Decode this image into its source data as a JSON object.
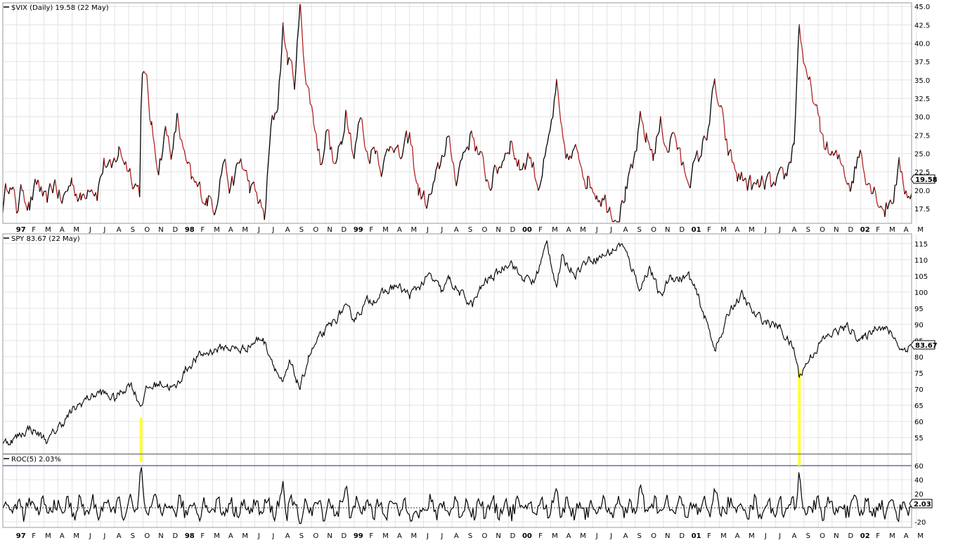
{
  "panels": {
    "vix": {
      "label": "$VIX (Daily) 19.58 (22 May)",
      "last_value": "19.58"
    },
    "spy": {
      "label": "SPY 83.67 (22 May)",
      "last_value": "83.67"
    },
    "roc": {
      "label": "ROC(5) 2.03%",
      "last_value": "2.03"
    }
  },
  "colors": {
    "vix_up": "#000000",
    "vix_down": "#b22222",
    "grid": "#e3e3e3",
    "highlight": "#ffff33",
    "roc_level_line": "#1a237e",
    "panel_border": "#9a9a9a"
  },
  "chart_data": [
    {
      "type": "line",
      "name": "vix",
      "x_range": [
        "1997-01-02",
        "2002-05-22"
      ],
      "ylim": [
        15.5,
        45.5
      ],
      "yticks": [
        17.5,
        20.0,
        22.5,
        25.0,
        27.5,
        30.0,
        32.5,
        35.0,
        37.5,
        40.0,
        42.5,
        45.0
      ],
      "ytick_labels": [
        "17.5",
        "20.0",
        "22.5",
        "25.0",
        "27.5",
        "30.0",
        "32.5",
        "35.0",
        "37.5",
        "40.0",
        "42.5",
        "45.0"
      ],
      "grid": true,
      "points": [
        [
          "1997-01-02",
          18
        ],
        [
          "1997-01-15",
          21.5
        ],
        [
          "1997-02-01",
          17.5
        ],
        [
          "1997-02-15",
          20.5
        ],
        [
          "1997-03-01",
          18
        ],
        [
          "1997-03-20",
          21
        ],
        [
          "1997-04-05",
          17.8
        ],
        [
          "1997-04-25",
          21.2
        ],
        [
          "1997-05-10",
          18.2
        ],
        [
          "1997-06-01",
          21.5
        ],
        [
          "1997-06-20",
          18.5
        ],
        [
          "1997-07-10",
          21.5
        ],
        [
          "1997-07-25",
          20
        ],
        [
          "1997-08-10",
          24
        ],
        [
          "1997-08-25",
          22
        ],
        [
          "1997-09-10",
          25.5
        ],
        [
          "1997-09-25",
          24
        ],
        [
          "1997-10-10",
          22
        ],
        [
          "1997-10-25",
          20
        ],
        [
          "1997-10-28",
          31
        ],
        [
          "1997-10-31",
          37
        ],
        [
          "1997-11-10",
          34
        ],
        [
          "1997-11-20",
          28
        ],
        [
          "1997-12-05",
          23.5
        ],
        [
          "1997-12-20",
          28
        ],
        [
          "1998-01-05",
          25
        ],
        [
          "1998-01-15",
          30
        ],
        [
          "1998-01-30",
          24
        ],
        [
          "1998-02-15",
          21
        ],
        [
          "1998-03-01",
          20
        ],
        [
          "1998-03-20",
          19
        ],
        [
          "1998-04-05",
          18
        ],
        [
          "1998-04-25",
          24.5
        ],
        [
          "1998-05-10",
          20
        ],
        [
          "1998-06-01",
          24
        ],
        [
          "1998-06-20",
          20.5
        ],
        [
          "1998-07-10",
          18.5
        ],
        [
          "1998-07-22",
          16
        ],
        [
          "1998-08-05",
          28
        ],
        [
          "1998-08-20",
          32
        ],
        [
          "1998-08-31",
          42
        ],
        [
          "1998-09-10",
          38
        ],
        [
          "1998-09-25",
          35
        ],
        [
          "1998-10-08",
          45
        ],
        [
          "1998-10-20",
          35
        ],
        [
          "1998-11-05",
          30
        ],
        [
          "1998-11-20",
          24
        ],
        [
          "1998-12-05",
          28.5
        ],
        [
          "1998-12-20",
          23
        ],
        [
          "1999-01-05",
          26
        ],
        [
          "1999-01-15",
          32
        ],
        [
          "1999-02-01",
          25
        ],
        [
          "1999-02-15",
          30
        ],
        [
          "1999-03-01",
          25
        ],
        [
          "1999-03-20",
          26
        ],
        [
          "1999-04-05",
          23
        ],
        [
          "1999-04-25",
          27.5
        ],
        [
          "1999-05-10",
          24
        ],
        [
          "1999-06-01",
          27
        ],
        [
          "1999-06-20",
          20
        ],
        [
          "1999-07-10",
          18
        ],
        [
          "1999-08-01",
          22
        ],
        [
          "1999-08-20",
          27
        ],
        [
          "1999-09-10",
          22
        ],
        [
          "1999-09-25",
          25
        ],
        [
          "1999-10-15",
          28
        ],
        [
          "1999-11-01",
          24
        ],
        [
          "1999-11-20",
          21
        ],
        [
          "1999-12-10",
          23
        ],
        [
          "2000-01-05",
          27
        ],
        [
          "2000-01-25",
          23
        ],
        [
          "2000-02-15",
          25
        ],
        [
          "2000-03-05",
          21
        ],
        [
          "2000-03-25",
          25
        ],
        [
          "2000-04-14",
          33.5
        ],
        [
          "2000-04-25",
          27
        ],
        [
          "2000-05-10",
          24
        ],
        [
          "2000-06-01",
          25
        ],
        [
          "2000-06-20",
          21.5
        ],
        [
          "2000-07-10",
          20
        ],
        [
          "2000-08-01",
          18.5
        ],
        [
          "2000-08-25",
          16.5
        ],
        [
          "2000-09-10",
          20
        ],
        [
          "2000-09-25",
          22
        ],
        [
          "2000-10-12",
          29
        ],
        [
          "2000-10-25",
          27
        ],
        [
          "2000-11-10",
          25
        ],
        [
          "2000-11-25",
          29
        ],
        [
          "2000-12-10",
          26
        ],
        [
          "2000-12-25",
          28
        ],
        [
          "2001-01-10",
          23
        ],
        [
          "2001-01-25",
          22
        ],
        [
          "2001-02-15",
          24
        ],
        [
          "2001-03-05",
          28
        ],
        [
          "2001-03-22",
          34
        ],
        [
          "2001-04-05",
          30
        ],
        [
          "2001-04-20",
          25
        ],
        [
          "2001-05-10",
          22
        ],
        [
          "2001-06-01",
          21
        ],
        [
          "2001-06-20",
          20
        ],
        [
          "2001-07-10",
          21
        ],
        [
          "2001-08-01",
          20
        ],
        [
          "2001-08-25",
          22
        ],
        [
          "2001-09-10",
          27
        ],
        [
          "2001-09-21",
          43
        ],
        [
          "2001-10-05",
          35
        ],
        [
          "2001-10-20",
          33
        ],
        [
          "2001-11-05",
          28
        ],
        [
          "2001-11-25",
          25
        ],
        [
          "2001-12-10",
          24
        ],
        [
          "2001-12-25",
          23
        ],
        [
          "2002-01-10",
          21
        ],
        [
          "2002-01-31",
          25.5
        ],
        [
          "2002-02-15",
          22
        ],
        [
          "2002-03-05",
          20
        ],
        [
          "2002-03-25",
          17.5
        ],
        [
          "2002-04-10",
          19
        ],
        [
          "2002-04-25",
          23
        ],
        [
          "2002-05-10",
          20
        ],
        [
          "2002-05-22",
          19.58
        ]
      ]
    },
    {
      "type": "line",
      "name": "spy",
      "x_range": [
        "1997-01-02",
        "2002-05-22"
      ],
      "ylim": [
        50,
        118
      ],
      "yticks": [
        55,
        60,
        65,
        70,
        75,
        80,
        85,
        90,
        95,
        100,
        105,
        110,
        115
      ],
      "ytick_labels": [
        "55",
        "60",
        "65",
        "70",
        "75",
        "80",
        "85",
        "90",
        "95",
        "100",
        "105",
        "110",
        "115"
      ],
      "grid": true,
      "points": [
        [
          "1997-01-02",
          53
        ],
        [
          "1997-02-01",
          55
        ],
        [
          "1997-03-01",
          58
        ],
        [
          "1997-04-10",
          54
        ],
        [
          "1997-05-01",
          58
        ],
        [
          "1997-06-01",
          63
        ],
        [
          "1997-07-01",
          67
        ],
        [
          "1997-08-01",
          69
        ],
        [
          "1997-09-01",
          67
        ],
        [
          "1997-10-05",
          72
        ],
        [
          "1997-10-27",
          65
        ],
        [
          "1997-11-10",
          70
        ],
        [
          "1997-12-10",
          72
        ],
        [
          "1998-01-10",
          70
        ],
        [
          "1998-02-01",
          76
        ],
        [
          "1998-03-01",
          80
        ],
        [
          "1998-04-01",
          82
        ],
        [
          "1998-05-01",
          83
        ],
        [
          "1998-06-01",
          82
        ],
        [
          "1998-07-17",
          86
        ],
        [
          "1998-08-05",
          80
        ],
        [
          "1998-08-31",
          71
        ],
        [
          "1998-09-15",
          78
        ],
        [
          "1998-10-08",
          70
        ],
        [
          "1998-10-25",
          80
        ],
        [
          "1998-11-20",
          86
        ],
        [
          "1998-12-15",
          90
        ],
        [
          "1999-01-10",
          95
        ],
        [
          "1999-02-01",
          92
        ],
        [
          "1999-03-01",
          97
        ],
        [
          "1999-04-01",
          99
        ],
        [
          "1999-05-01",
          102
        ],
        [
          "1999-06-01",
          99
        ],
        [
          "1999-07-15",
          105
        ],
        [
          "1999-08-10",
          100
        ],
        [
          "1999-08-25",
          104
        ],
        [
          "1999-09-15",
          100
        ],
        [
          "1999-10-15",
          96
        ],
        [
          "1999-11-10",
          103
        ],
        [
          "1999-12-10",
          106
        ],
        [
          "2000-01-05",
          110
        ],
        [
          "2000-01-25",
          105
        ],
        [
          "2000-02-25",
          103
        ],
        [
          "2000-03-24",
          115
        ],
        [
          "2000-04-14",
          102
        ],
        [
          "2000-04-25",
          110
        ],
        [
          "2000-05-25",
          106
        ],
        [
          "2000-06-20",
          110
        ],
        [
          "2000-07-20",
          111
        ],
        [
          "2000-08-15",
          113
        ],
        [
          "2000-09-01",
          115
        ],
        [
          "2000-09-20",
          109
        ],
        [
          "2000-10-12",
          101
        ],
        [
          "2000-11-01",
          108
        ],
        [
          "2000-11-25",
          98
        ],
        [
          "2000-12-15",
          105
        ],
        [
          "2001-01-05",
          104
        ],
        [
          "2001-01-25",
          105
        ],
        [
          "2001-02-15",
          98
        ],
        [
          "2001-03-22",
          83
        ],
        [
          "2001-04-05",
          86
        ],
        [
          "2001-04-25",
          95
        ],
        [
          "2001-05-20",
          99
        ],
        [
          "2001-06-15",
          93
        ],
        [
          "2001-07-10",
          91
        ],
        [
          "2001-08-10",
          89
        ],
        [
          "2001-09-10",
          82
        ],
        [
          "2001-09-21",
          74
        ],
        [
          "2001-10-15",
          80
        ],
        [
          "2001-11-10",
          85
        ],
        [
          "2001-12-10",
          88
        ],
        [
          "2002-01-05",
          89
        ],
        [
          "2002-02-05",
          85
        ],
        [
          "2002-03-10",
          90
        ],
        [
          "2002-04-10",
          87
        ],
        [
          "2002-05-01",
          82
        ],
        [
          "2002-05-22",
          83.67
        ]
      ]
    },
    {
      "type": "line",
      "name": "roc",
      "x_range": [
        "1997-01-02",
        "2002-05-22"
      ],
      "ylim": [
        -28,
        76
      ],
      "yticks": [
        -20,
        20,
        40,
        60
      ],
      "ytick_labels": [
        "-20",
        "20",
        "40",
        "60"
      ],
      "level_line": 60,
      "grid": true,
      "points": [
        [
          "1997-01-02",
          0
        ],
        [
          "1997-10-28",
          65
        ],
        [
          "1997-11-10",
          -8
        ],
        [
          "1998-08-31",
          38
        ],
        [
          "1998-10-08",
          -25
        ],
        [
          "1999-01-15",
          35
        ],
        [
          "1999-06-20",
          -18
        ],
        [
          "2000-04-14",
          32
        ],
        [
          "2000-10-12",
          35
        ],
        [
          "2001-03-22",
          32
        ],
        [
          "2001-09-21",
          60
        ],
        [
          "2001-10-05",
          -10
        ],
        [
          "2002-05-22",
          2.03
        ]
      ]
    },
    {
      "type": "highlight_bars",
      "name": "vix-spike-markers",
      "bars": [
        {
          "date": "1997-10-28",
          "spy_from": 61,
          "roc_to": 65
        },
        {
          "date": "2001-09-21",
          "spy_from": 76,
          "roc_to": 60
        }
      ]
    },
    {
      "type": "time_axis",
      "tick_labels": [
        "97",
        "F",
        "M",
        "A",
        "M",
        "J",
        "J",
        "A",
        "S",
        "O",
        "N",
        "D",
        "98",
        "F",
        "M",
        "A",
        "M",
        "J",
        "J",
        "A",
        "S",
        "O",
        "N",
        "D",
        "99",
        "F",
        "M",
        "A",
        "M",
        "J",
        "J",
        "A",
        "S",
        "O",
        "N",
        "D",
        "00",
        "F",
        "M",
        "A",
        "M",
        "J",
        "J",
        "A",
        "S",
        "O",
        "N",
        "D",
        "01",
        "F",
        "M",
        "A",
        "M",
        "J",
        "J",
        "A",
        "S",
        "O",
        "N",
        "D",
        "02",
        "F",
        "M",
        "A",
        "M"
      ],
      "bold_labels": [
        "97",
        "98",
        "99",
        "00",
        "01",
        "02"
      ]
    }
  ]
}
